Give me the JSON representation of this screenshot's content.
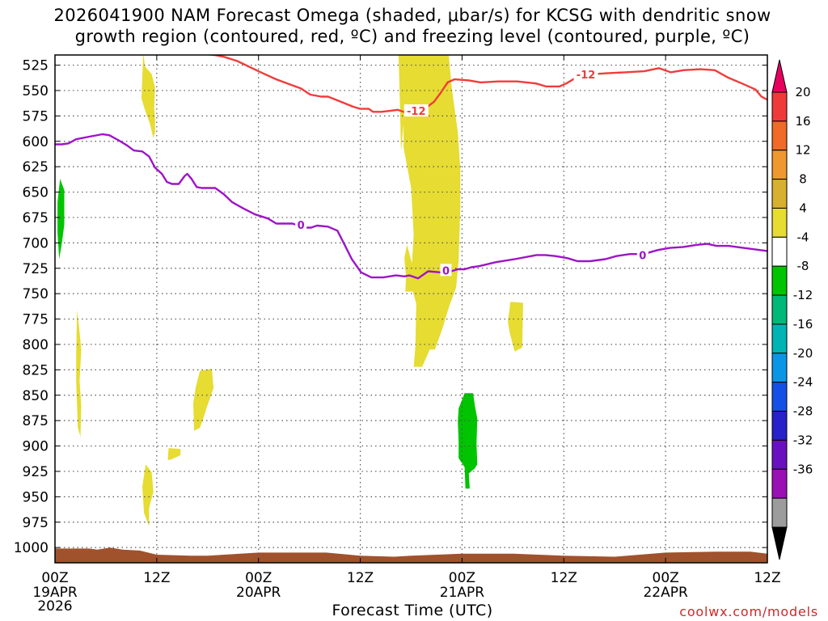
{
  "title": {
    "line1": "2026041900 NAM Forecast Omega (shaded, μbar/s) for KCSG with dendritic snow",
    "line2": "growth region (contoured, red, ºC) and freezing level (contoured, purple, ºC)"
  },
  "credit": "coolwx.com/models",
  "chart_data": {
    "type": "time-height cross section",
    "xlabel": "Forecast Time (UTC)",
    "ylabel": "",
    "x_range_hours": [
      0,
      84
    ],
    "y_range_mb": [
      1015,
      515
    ],
    "y_axis_inverted": true,
    "grid": true,
    "y_ticks": [
      "525",
      "550",
      "575",
      "600",
      "625",
      "650",
      "675",
      "700",
      "725",
      "750",
      "775",
      "800",
      "825",
      "850",
      "875",
      "900",
      "925",
      "950",
      "975",
      "1000"
    ],
    "x_ticks": [
      {
        "label": "00Z",
        "sub": "19APR",
        "year": "2026",
        "hour": 0
      },
      {
        "label": "12Z",
        "sub": "",
        "year": "",
        "hour": 12
      },
      {
        "label": "00Z",
        "sub": "20APR",
        "year": "",
        "hour": 24
      },
      {
        "label": "12Z",
        "sub": "",
        "year": "",
        "hour": 36
      },
      {
        "label": "00Z",
        "sub": "21APR",
        "year": "",
        "hour": 48
      },
      {
        "label": "12Z",
        "sub": "",
        "year": "",
        "hour": 60
      },
      {
        "label": "00Z",
        "sub": "22APR",
        "year": "",
        "hour": 72
      },
      {
        "label": "12Z",
        "sub": "",
        "year": "",
        "hour": 84
      }
    ],
    "colorbar": {
      "labels": [
        "20",
        "16",
        "12",
        "8",
        "4",
        "-4",
        "-8",
        "-12",
        "-16",
        "-20",
        "-24",
        "-28",
        "-32",
        "-36"
      ],
      "colors": [
        "#e8005f",
        "#f03a3a",
        "#f06a28",
        "#f09830",
        "#d8b030",
        "#e6dc32",
        "#ffffff",
        "#00c400",
        "#00b878",
        "#00b4b4",
        "#0a96e6",
        "#1450e6",
        "#2820c8",
        "#6a10c0",
        "#9a10b4",
        "#9c9c9c",
        "#000000"
      ]
    },
    "terrain_color": "#a0522d",
    "series": [
      {
        "label": "-12",
        "color": "#f03c3c",
        "points": [
          [
            16.9,
            512
          ],
          [
            17.5,
            514
          ],
          [
            18.8,
            515
          ],
          [
            20,
            517
          ],
          [
            21.5,
            521
          ],
          [
            23,
            527
          ],
          [
            24.5,
            533
          ],
          [
            26.1,
            539
          ],
          [
            27.7,
            544
          ],
          [
            29,
            548
          ],
          [
            30.1,
            554
          ],
          [
            31.4,
            556
          ],
          [
            32.2,
            556
          ],
          [
            33.7,
            561
          ],
          [
            35.2,
            566
          ],
          [
            36,
            568
          ],
          [
            37,
            568
          ],
          [
            37.5,
            571
          ],
          [
            38.5,
            571
          ],
          [
            39.5,
            570
          ],
          [
            40.4,
            569
          ],
          [
            41.1,
            571
          ],
          [
            42.2,
            571
          ],
          [
            43.6,
            568
          ],
          [
            44.7,
            561
          ],
          [
            45.5,
            552
          ],
          [
            46.3,
            542
          ],
          [
            47.1,
            539
          ],
          [
            48.8,
            540
          ],
          [
            50.2,
            542
          ],
          [
            52.3,
            541
          ],
          [
            54.5,
            541
          ],
          [
            56.7,
            543
          ],
          [
            57.9,
            546
          ],
          [
            59.5,
            546
          ],
          [
            60.3,
            543
          ],
          [
            61.5,
            537
          ],
          [
            63.1,
            534
          ],
          [
            65.1,
            533
          ],
          [
            67.2,
            532
          ],
          [
            69.5,
            531
          ],
          [
            71.2,
            528
          ],
          [
            72.6,
            532
          ],
          [
            74.1,
            530
          ],
          [
            76.1,
            529
          ],
          [
            77.8,
            530
          ],
          [
            79.3,
            537
          ],
          [
            81,
            543
          ],
          [
            82.6,
            549
          ],
          [
            83.3,
            556
          ],
          [
            84,
            559
          ]
        ],
        "labels_at": [
          [
            42.6,
            570
          ],
          [
            62.6,
            534
          ]
        ]
      },
      {
        "label": "0",
        "color": "#9e14c8",
        "points": [
          [
            0,
            603
          ],
          [
            0.8,
            603
          ],
          [
            1.6,
            602
          ],
          [
            2.5,
            598
          ],
          [
            4.3,
            595
          ],
          [
            5.6,
            593
          ],
          [
            6.4,
            594
          ],
          [
            7.5,
            599
          ],
          [
            8.5,
            604
          ],
          [
            9.3,
            609
          ],
          [
            10.3,
            610
          ],
          [
            11.1,
            615
          ],
          [
            11.8,
            626
          ],
          [
            12.6,
            632
          ],
          [
            13.2,
            640
          ],
          [
            13.8,
            642
          ],
          [
            14.6,
            642
          ],
          [
            15.3,
            634
          ],
          [
            15.6,
            632
          ],
          [
            16.1,
            637
          ],
          [
            16.7,
            645
          ],
          [
            17.3,
            646
          ],
          [
            18.9,
            646
          ],
          [
            19.9,
            652
          ],
          [
            20.9,
            660
          ],
          [
            22.2,
            666
          ],
          [
            23.6,
            672
          ],
          [
            25.1,
            676
          ],
          [
            26.1,
            681
          ],
          [
            28,
            681
          ],
          [
            29.5,
            685
          ],
          [
            30.2,
            685
          ],
          [
            30.9,
            683
          ],
          [
            32.2,
            684
          ],
          [
            33.3,
            688
          ],
          [
            34.1,
            701
          ],
          [
            35,
            716
          ],
          [
            36.1,
            729
          ],
          [
            37.3,
            734
          ],
          [
            38.7,
            734
          ],
          [
            40.2,
            732
          ],
          [
            41.2,
            733
          ],
          [
            41.8,
            732
          ],
          [
            42.8,
            735
          ],
          [
            44,
            728
          ],
          [
            45.4,
            729
          ],
          [
            46.7,
            728
          ],
          [
            47.5,
            726
          ],
          [
            48.3,
            726
          ],
          [
            49.1,
            724
          ],
          [
            50,
            723
          ],
          [
            52,
            719
          ],
          [
            54.2,
            716
          ],
          [
            56.8,
            712
          ],
          [
            57.8,
            712
          ],
          [
            59,
            713
          ],
          [
            60.4,
            715
          ],
          [
            61.6,
            718
          ],
          [
            63.1,
            718
          ],
          [
            64.9,
            716
          ],
          [
            66.2,
            713
          ],
          [
            67.8,
            711
          ],
          [
            69.4,
            711
          ],
          [
            71.1,
            707
          ],
          [
            72.5,
            705
          ],
          [
            74.1,
            704
          ],
          [
            75.6,
            702
          ],
          [
            76.9,
            701
          ],
          [
            78,
            703
          ],
          [
            79.4,
            703
          ],
          [
            81.2,
            705
          ],
          [
            84,
            708
          ]
        ],
        "labels_at": [
          [
            29,
            682
          ],
          [
            46.1,
            727
          ],
          [
            69.3,
            712
          ]
        ]
      }
    ],
    "omega_areas": [
      {
        "value_class": "4 to 8",
        "color": "#e6dc32",
        "points": [
          [
            10.4,
            512
          ],
          [
            10.6,
            526
          ],
          [
            11.4,
            534
          ],
          [
            11.8,
            547
          ],
          [
            11.7,
            567
          ],
          [
            11.8,
            578
          ],
          [
            11.8,
            591
          ],
          [
            11.6,
            597
          ],
          [
            11.2,
            583
          ],
          [
            10.6,
            569
          ],
          [
            10.2,
            558
          ],
          [
            10.3,
            536
          ],
          [
            10.4,
            512
          ]
        ]
      },
      {
        "value_class": "4 to 8",
        "color": "#e6dc32",
        "points": [
          [
            40.5,
            512
          ],
          [
            46.4,
            512
          ],
          [
            46.8,
            548
          ],
          [
            47.5,
            591
          ],
          [
            47.8,
            627
          ],
          [
            47.8,
            665
          ],
          [
            47.6,
            718
          ],
          [
            47.3,
            744
          ],
          [
            46.5,
            762
          ],
          [
            45.7,
            784
          ],
          [
            44.8,
            805
          ],
          [
            44.2,
            805
          ],
          [
            43.3,
            822
          ],
          [
            42.3,
            822
          ],
          [
            42.5,
            802
          ],
          [
            42.6,
            760
          ],
          [
            42.2,
            748
          ],
          [
            41.3,
            748
          ],
          [
            41.4,
            734
          ],
          [
            41.2,
            715
          ],
          [
            41.5,
            702
          ],
          [
            42.1,
            720
          ],
          [
            42.3,
            692
          ],
          [
            42,
            646
          ],
          [
            41.1,
            606
          ],
          [
            41.1,
            583
          ],
          [
            40.8,
            610
          ],
          [
            40.7,
            572
          ],
          [
            40.6,
            540
          ],
          [
            40.5,
            512
          ]
        ]
      },
      {
        "value_class": "4 to 8",
        "color": "#e6dc32",
        "points": [
          [
            2.6,
            766
          ],
          [
            2.8,
            780
          ],
          [
            3.1,
            805
          ],
          [
            2.9,
            836
          ],
          [
            3.1,
            860
          ],
          [
            3,
            891
          ],
          [
            2.7,
            882
          ],
          [
            2.5,
            836
          ],
          [
            2.5,
            810
          ],
          [
            2.6,
            766
          ]
        ]
      },
      {
        "value_class": "4 to 8",
        "color": "#e6dc32",
        "points": [
          [
            17.1,
            826
          ],
          [
            18.5,
            824
          ],
          [
            18.7,
            843
          ],
          [
            17.9,
            862
          ],
          [
            17.6,
            870
          ],
          [
            17.1,
            882
          ],
          [
            16.4,
            885
          ],
          [
            16.3,
            858
          ],
          [
            16.6,
            842
          ],
          [
            17.1,
            826
          ]
        ]
      },
      {
        "value_class": "4 to 8",
        "color": "#e6dc32",
        "points": [
          [
            13.4,
            902
          ],
          [
            14.8,
            903
          ],
          [
            14.8,
            909
          ],
          [
            13.8,
            913
          ],
          [
            13.3,
            914
          ],
          [
            13.4,
            902
          ]
        ]
      },
      {
        "value_class": "4 to 8",
        "color": "#e6dc32",
        "points": [
          [
            10.7,
            918
          ],
          [
            11.4,
            926
          ],
          [
            11.6,
            945
          ],
          [
            11.1,
            961
          ],
          [
            11.1,
            979
          ],
          [
            10.5,
            966
          ],
          [
            10.3,
            940
          ],
          [
            10.7,
            918
          ]
        ]
      },
      {
        "value_class": "4 to 8",
        "color": "#e6dc32",
        "points": [
          [
            53.7,
            758
          ],
          [
            55.2,
            759
          ],
          [
            55.1,
            803
          ],
          [
            54.2,
            807
          ],
          [
            53.6,
            788
          ],
          [
            53.4,
            778
          ],
          [
            53.7,
            758
          ]
        ]
      },
      {
        "value_class": "-4 to -8",
        "color": "#00c400",
        "points": [
          [
            0.6,
            637
          ],
          [
            1.1,
            648
          ],
          [
            1.1,
            682
          ],
          [
            0.8,
            701
          ],
          [
            0.5,
            716
          ],
          [
            0.3,
            690
          ],
          [
            0.3,
            660
          ],
          [
            0.6,
            637
          ]
        ]
      },
      {
        "value_class": "-4 to -8",
        "color": "#00c400",
        "points": [
          [
            48.3,
            848
          ],
          [
            49.3,
            848
          ],
          [
            49.5,
            860
          ],
          [
            49.8,
            873
          ],
          [
            49.7,
            898
          ],
          [
            49.8,
            918
          ],
          [
            49.5,
            922
          ],
          [
            48.8,
            927
          ],
          [
            48.9,
            942
          ],
          [
            48.4,
            942
          ],
          [
            48.3,
            921
          ],
          [
            47.6,
            912
          ],
          [
            47.6,
            896
          ],
          [
            47.5,
            876
          ],
          [
            47.6,
            863
          ],
          [
            48.3,
            848
          ]
        ]
      }
    ],
    "terrain": [
      [
        0,
        1001
      ],
      [
        4,
        1001
      ],
      [
        5,
        1002
      ],
      [
        6.5,
        1000
      ],
      [
        8,
        1002
      ],
      [
        10,
        1003
      ],
      [
        12,
        1007
      ],
      [
        16,
        1008
      ],
      [
        18,
        1008
      ],
      [
        24,
        1005
      ],
      [
        28,
        1005
      ],
      [
        32,
        1005
      ],
      [
        36,
        1008
      ],
      [
        40,
        1009
      ],
      [
        42,
        1008
      ],
      [
        48,
        1006
      ],
      [
        54,
        1006
      ],
      [
        60,
        1008
      ],
      [
        66,
        1009
      ],
      [
        72,
        1005
      ],
      [
        78,
        1004
      ],
      [
        82,
        1004
      ],
      [
        84,
        1006
      ],
      [
        84,
        1015
      ],
      [
        0,
        1015
      ]
    ]
  }
}
